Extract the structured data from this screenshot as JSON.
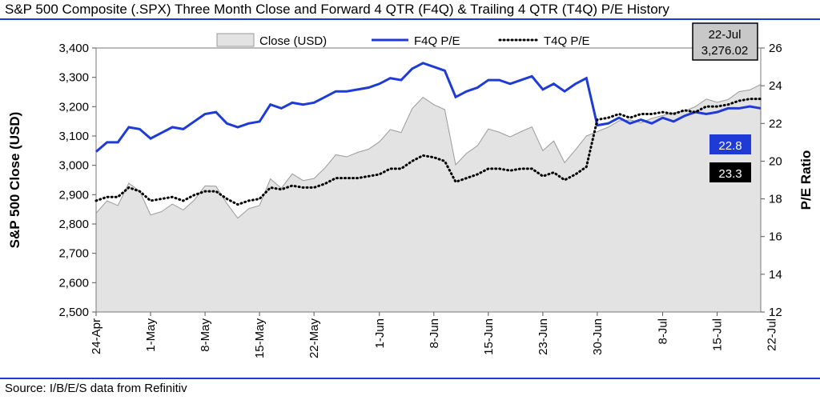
{
  "title": "S&P 500 Composite (.SPX) Three Month Close and Forward 4 QTR (F4Q) & Trailing 4 QTR (T4Q) P/E History",
  "source": "Source: I/B/E/S data from Refinitiv",
  "colors": {
    "accent": "#1f3bd6",
    "area_fill": "#e3e3e3",
    "area_stroke": "#9a9a9a",
    "t4q": "#000000"
  },
  "callouts": {
    "date_box": {
      "date": "22-Jul",
      "value": "3,276.02"
    },
    "f4q_value": "22.8",
    "t4q_value": "23.3"
  },
  "chart_data": {
    "type": "area",
    "xlabel": "",
    "ylabel": "S&P 500 Close (USD)",
    "y2label": "P/E Ratio",
    "ylim": [
      2500,
      3400
    ],
    "y2lim": [
      12,
      26
    ],
    "yticks": [
      "2,500",
      "2,600",
      "2,700",
      "2,800",
      "2,900",
      "3,000",
      "3,100",
      "3,200",
      "3,300",
      "3,400"
    ],
    "y2ticks": [
      "12",
      "14",
      "16",
      "18",
      "20",
      "22",
      "24",
      "26"
    ],
    "x_tick_labels": [
      "24-Apr",
      "1-May",
      "8-May",
      "15-May",
      "22-May",
      "1-Jun",
      "8-Jun",
      "15-Jun",
      "23-Jun",
      "30-Jun",
      "8-Jul",
      "15-Jul",
      "22-Jul"
    ],
    "x_tick_index": [
      0,
      5,
      10,
      15,
      20,
      26,
      31,
      36,
      41,
      46,
      52,
      57,
      62
    ],
    "legend": {
      "position": "top",
      "entries": [
        "Close (USD)",
        "F4Q P/E",
        "T4Q P/E"
      ]
    },
    "grid": false,
    "series": [
      {
        "name": "Close (USD)",
        "axis": "left",
        "type": "area",
        "values": [
          2837,
          2879,
          2863,
          2939,
          2912,
          2831,
          2842,
          2868,
          2848,
          2881,
          2930,
          2929,
          2870,
          2820,
          2852,
          2863,
          2954,
          2922,
          2971,
          2948,
          2955,
          2991,
          3036,
          3029,
          3044,
          3055,
          3080,
          3122,
          3112,
          3193,
          3232,
          3207,
          3190,
          3002,
          3041,
          3067,
          3124,
          3113,
          3097,
          3115,
          3131,
          3050,
          3083,
          3009,
          3053,
          3100,
          3115,
          3130,
          3152,
          3155,
          3145,
          3160,
          3170,
          3179,
          3185,
          3200,
          3226,
          3215,
          3224,
          3251,
          3257,
          3276
        ]
      },
      {
        "name": "F4Q P/E",
        "axis": "right",
        "values": [
          20.5,
          21.0,
          21.0,
          21.8,
          21.7,
          21.2,
          21.5,
          21.8,
          21.7,
          22.1,
          22.5,
          22.6,
          22.0,
          21.8,
          22.0,
          22.1,
          23.0,
          22.8,
          23.1,
          23.0,
          23.1,
          23.4,
          23.7,
          23.7,
          23.8,
          23.9,
          24.1,
          24.4,
          24.3,
          24.9,
          25.2,
          25.0,
          24.8,
          23.4,
          23.7,
          23.9,
          24.3,
          24.3,
          24.1,
          24.3,
          24.5,
          23.8,
          24.1,
          23.7,
          24.1,
          24.4,
          21.9,
          22.0,
          22.3,
          22.0,
          22.2,
          22.0,
          22.3,
          22.1,
          22.4,
          22.6,
          22.5,
          22.6,
          22.8,
          22.8,
          22.9,
          22.8
        ]
      },
      {
        "name": "T4Q P/E",
        "axis": "right",
        "values": [
          17.9,
          18.1,
          18.1,
          18.6,
          18.4,
          17.9,
          18.0,
          18.1,
          17.9,
          18.2,
          18.4,
          18.4,
          18.0,
          17.7,
          17.9,
          18.0,
          18.6,
          18.5,
          18.7,
          18.6,
          18.6,
          18.8,
          19.1,
          19.1,
          19.1,
          19.2,
          19.3,
          19.6,
          19.6,
          20.0,
          20.3,
          20.2,
          20.0,
          18.9,
          19.1,
          19.3,
          19.6,
          19.6,
          19.5,
          19.6,
          19.6,
          19.2,
          19.4,
          19.0,
          19.3,
          19.7,
          22.2,
          22.3,
          22.5,
          22.3,
          22.5,
          22.5,
          22.6,
          22.5,
          22.7,
          22.6,
          22.9,
          22.9,
          23.0,
          23.2,
          23.3,
          23.3
        ]
      }
    ]
  }
}
